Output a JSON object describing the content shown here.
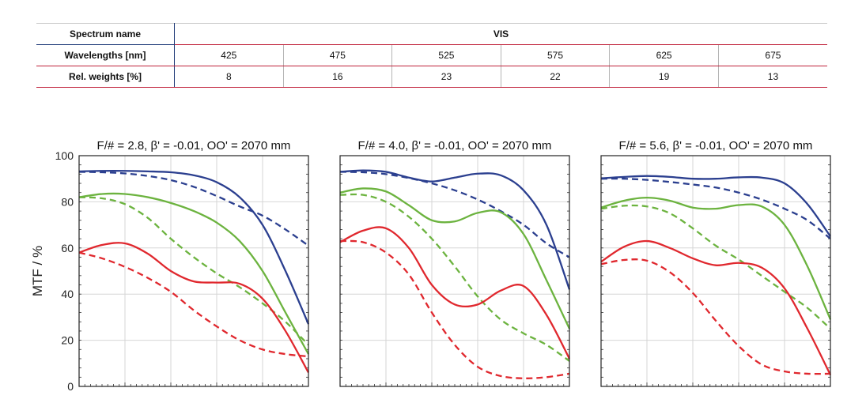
{
  "spectrum_table": {
    "name_header": "Spectrum name",
    "name_value": "VIS",
    "wavelength_header": "Wavelengths [nm]",
    "wavelengths": [
      "425",
      "475",
      "525",
      "575",
      "625",
      "675"
    ],
    "weight_header": "Rel. weights [%]",
    "weights": [
      "8",
      "16",
      "23",
      "22",
      "19",
      "13"
    ]
  },
  "chart_data": {
    "type": "line",
    "ylabel": "MTF / %",
    "ylim": [
      0,
      100
    ],
    "yticks": [
      0,
      20,
      40,
      60,
      80,
      100
    ],
    "xlim": [
      0,
      1
    ],
    "grid": true,
    "colors": {
      "blue": "#2b3f8f",
      "green": "#6cb33f",
      "red": "#e0282e"
    },
    "panels": [
      {
        "title": "F/# = 2.8, β' = -0.01, OO' = 2070 mm",
        "series": [
          {
            "color": "blue",
            "dash": false,
            "x": [
              0,
              0.1,
              0.2,
              0.3,
              0.4,
              0.5,
              0.6,
              0.7,
              0.8,
              0.9,
              1.0
            ],
            "y": [
              93.2,
              93.4,
              93.4,
              93.2,
              92.8,
              91.5,
              88.5,
              82,
              70,
              50,
              27
            ]
          },
          {
            "color": "blue",
            "dash": true,
            "x": [
              0,
              0.1,
              0.2,
              0.3,
              0.4,
              0.5,
              0.6,
              0.7,
              0.8,
              0.9,
              1.0
            ],
            "y": [
              93.0,
              92.8,
              92.3,
              91.2,
              89.4,
              86.5,
              82.5,
              78,
              74,
              68,
              61
            ]
          },
          {
            "color": "green",
            "dash": false,
            "x": [
              0,
              0.1,
              0.2,
              0.3,
              0.4,
              0.5,
              0.6,
              0.7,
              0.8,
              0.9,
              1.0
            ],
            "y": [
              82,
              83.4,
              83.4,
              82,
              79.5,
              76,
              71,
              63,
              50,
              32,
              14
            ]
          },
          {
            "color": "green",
            "dash": true,
            "x": [
              0,
              0.1,
              0.2,
              0.3,
              0.4,
              0.5,
              0.6,
              0.7,
              0.8,
              0.9,
              1.0
            ],
            "y": [
              82,
              81.5,
              79,
              73,
              64,
              56,
              49,
              43,
              36,
              28,
              18
            ]
          },
          {
            "color": "red",
            "dash": false,
            "x": [
              0,
              0.1,
              0.2,
              0.3,
              0.4,
              0.5,
              0.6,
              0.7,
              0.8,
              0.9,
              1.0
            ],
            "y": [
              58,
              61.3,
              62,
              57.5,
              50,
              45.5,
              45,
              44.5,
              38,
              24,
              6
            ]
          },
          {
            "color": "red",
            "dash": true,
            "x": [
              0,
              0.1,
              0.2,
              0.3,
              0.4,
              0.5,
              0.6,
              0.7,
              0.8,
              0.9,
              1.0
            ],
            "y": [
              58,
              55.5,
              51.8,
              47,
              41,
              33,
              26,
              20,
              16,
              14,
              13
            ]
          }
        ]
      },
      {
        "title": "F/# = 4.0, β' = -0.01, OO' = 2070 mm",
        "series": [
          {
            "color": "blue",
            "dash": false,
            "x": [
              0,
              0.1,
              0.2,
              0.3,
              0.4,
              0.5,
              0.6,
              0.7,
              0.8,
              0.9,
              1.0
            ],
            "y": [
              93,
              93.6,
              93,
              90.5,
              88.8,
              90.5,
              92.2,
              91.5,
              85,
              70,
              42
            ]
          },
          {
            "color": "blue",
            "dash": true,
            "x": [
              0,
              0.1,
              0.2,
              0.3,
              0.4,
              0.5,
              0.6,
              0.7,
              0.8,
              0.9,
              1.0
            ],
            "y": [
              93,
              92.8,
              92,
              90.3,
              88,
              85,
              81,
              76,
              70,
              62,
              56
            ]
          },
          {
            "color": "green",
            "dash": false,
            "x": [
              0,
              0.1,
              0.2,
              0.3,
              0.4,
              0.5,
              0.6,
              0.7,
              0.8,
              0.9,
              1.0
            ],
            "y": [
              84,
              85.8,
              84.5,
              78.5,
              72,
              71.5,
              75.2,
              75.5,
              66,
              46,
              25
            ]
          },
          {
            "color": "green",
            "dash": true,
            "x": [
              0,
              0.1,
              0.2,
              0.3,
              0.4,
              0.5,
              0.6,
              0.7,
              0.8,
              0.9,
              1.0
            ],
            "y": [
              83,
              83,
              80,
              73.5,
              64,
              52,
              39,
              29,
              23,
              18,
              11
            ]
          },
          {
            "color": "red",
            "dash": false,
            "x": [
              0,
              0.1,
              0.2,
              0.3,
              0.4,
              0.5,
              0.6,
              0.7,
              0.8,
              0.9,
              1.0
            ],
            "y": [
              62.5,
              67.5,
              68.5,
              60,
              44,
              35.5,
              35.5,
              41.5,
              43.5,
              31,
              12
            ]
          },
          {
            "color": "red",
            "dash": true,
            "x": [
              0,
              0.1,
              0.2,
              0.3,
              0.4,
              0.5,
              0.6,
              0.7,
              0.8,
              0.9,
              1.0
            ],
            "y": [
              63,
              62.5,
              58,
              48.5,
              32,
              18,
              8.5,
              4.5,
              3.5,
              4,
              5.5
            ]
          }
        ]
      },
      {
        "title": "F/# = 5.6, β' = -0.01, OO' = 2070 mm",
        "series": [
          {
            "color": "blue",
            "dash": false,
            "x": [
              0,
              0.1,
              0.2,
              0.3,
              0.4,
              0.5,
              0.6,
              0.7,
              0.8,
              0.9,
              1.0
            ],
            "y": [
              90.2,
              90.8,
              91.2,
              90.8,
              90,
              90,
              90.6,
              90.5,
              88,
              79,
              65
            ]
          },
          {
            "color": "blue",
            "dash": true,
            "x": [
              0,
              0.1,
              0.2,
              0.3,
              0.4,
              0.5,
              0.6,
              0.7,
              0.8,
              0.9,
              1.0
            ],
            "y": [
              90,
              90,
              89.5,
              88.6,
              87.5,
              86.2,
              84,
              81,
              77,
              72,
              64
            ]
          },
          {
            "color": "green",
            "dash": false,
            "x": [
              0,
              0.1,
              0.2,
              0.3,
              0.4,
              0.5,
              0.6,
              0.7,
              0.8,
              0.9,
              1.0
            ],
            "y": [
              77.5,
              80.5,
              81.8,
              80.5,
              77.5,
              77,
              78.6,
              78,
              70,
              52,
              29
            ]
          },
          {
            "color": "green",
            "dash": true,
            "x": [
              0,
              0.1,
              0.2,
              0.3,
              0.4,
              0.5,
              0.6,
              0.7,
              0.8,
              0.9,
              1.0
            ],
            "y": [
              77,
              78.3,
              78,
              75,
              68.5,
              61,
              55,
              48,
              41,
              34,
              25
            ]
          },
          {
            "color": "red",
            "dash": false,
            "x": [
              0,
              0.1,
              0.2,
              0.3,
              0.4,
              0.5,
              0.6,
              0.7,
              0.8,
              0.9,
              1.0
            ],
            "y": [
              54,
              60.5,
              63,
              60,
              55.5,
              52.5,
              53.5,
              51.5,
              42.5,
              25,
              5
            ]
          },
          {
            "color": "red",
            "dash": true,
            "x": [
              0,
              0.1,
              0.2,
              0.3,
              0.4,
              0.5,
              0.6,
              0.7,
              0.8,
              0.9,
              1.0
            ],
            "y": [
              53,
              54.8,
              54.5,
              49.5,
              40.5,
              28.5,
              17.5,
              9.5,
              6.5,
              5.5,
              5.5
            ]
          }
        ]
      }
    ]
  }
}
